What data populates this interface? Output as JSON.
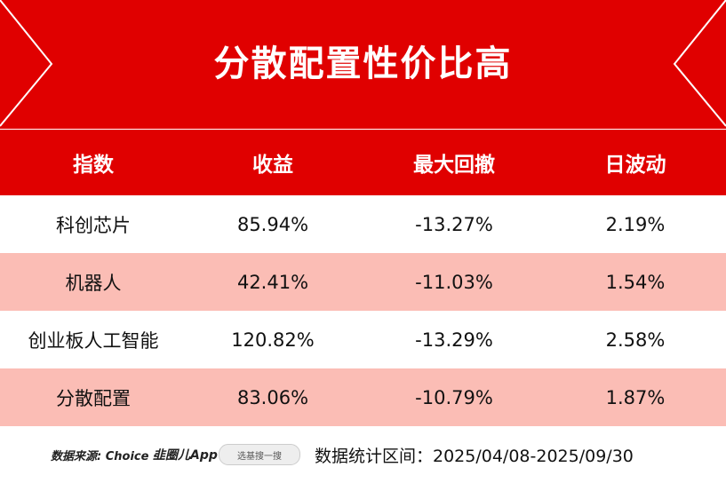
{
  "header": {
    "title": "分散配置性价比高"
  },
  "table": {
    "columns": [
      "指数",
      "收益",
      "最大回撤",
      "日波动"
    ],
    "rows": [
      [
        "科创芯片",
        "85.94%",
        "-13.27%",
        "2.19%"
      ],
      [
        "机器人",
        "42.41%",
        "-11.03%",
        "1.54%"
      ],
      [
        "创业板人工智能",
        "120.82%",
        "-13.29%",
        "2.58%"
      ],
      [
        "分散配置",
        "83.06%",
        "-10.79%",
        "1.87%"
      ]
    ]
  },
  "footer": {
    "source": "数据来源: Choice ·",
    "app": "韭圈儿App",
    "search": "选基搜一搜",
    "period": "数据统计区间：2025/04/08-2025/09/30"
  }
}
